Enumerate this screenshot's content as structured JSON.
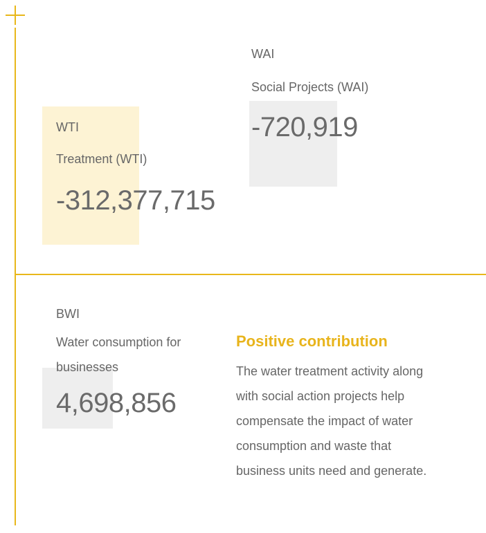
{
  "blocks": [
    {
      "code": "WAI",
      "label": "Social Projects (WAI)",
      "value": "-720,919"
    },
    {
      "code": "WTI",
      "label": "Treatment  (WTI)",
      "value": "-312,377,715"
    },
    {
      "code": "BWI",
      "label_lines": [
        "Water consumption for",
        "businesses"
      ],
      "value": "4,698,856"
    }
  ],
  "note": {
    "title": "Positive contribution",
    "lines": [
      "The water treatment activity along",
      "with social action projects help",
      "compensate the impact of water",
      "consumption and waste that",
      "business units need and generate."
    ]
  }
}
